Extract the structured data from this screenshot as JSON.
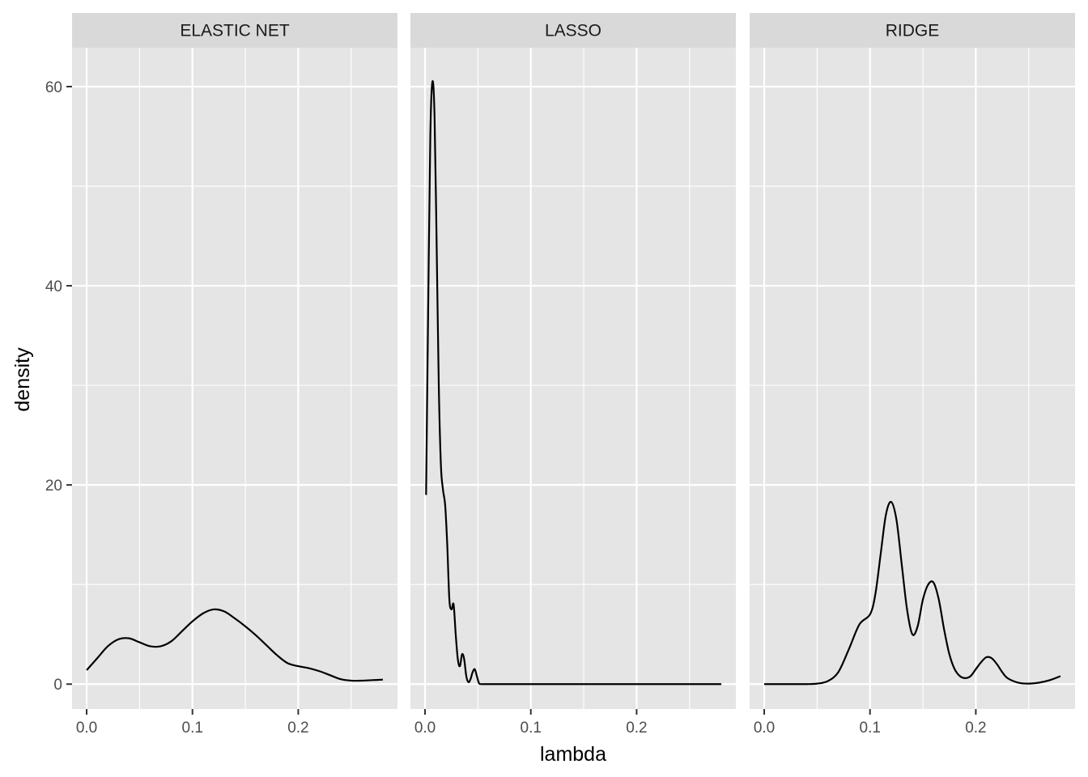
{
  "chart_data": {
    "type": "area",
    "geom": "density",
    "xlabel": "lambda",
    "ylabel": "density",
    "ylim": [
      -2.5,
      63.9
    ],
    "xlim": [
      -0.0138,
      0.2938
    ],
    "x_ticks": [
      0.0,
      0.1,
      0.2
    ],
    "x_tick_labels": [
      "0.0",
      "0.1",
      "0.2"
    ],
    "y_ticks": [
      0,
      20,
      40,
      60
    ],
    "y_tick_labels": [
      "0",
      "20",
      "40",
      "60"
    ],
    "grid": true,
    "background": "#e5e5e5",
    "strip_background": "#d9d9d9",
    "grid_color": "#ffffff",
    "line_color": "#000000",
    "panels": [
      {
        "facet": "ELASTIC NET",
        "x": [
          0.0,
          0.01,
          0.02,
          0.03,
          0.04,
          0.05,
          0.06,
          0.07,
          0.08,
          0.09,
          0.1,
          0.11,
          0.12,
          0.13,
          0.14,
          0.15,
          0.16,
          0.17,
          0.18,
          0.19,
          0.2,
          0.21,
          0.22,
          0.23,
          0.24,
          0.25,
          0.26,
          0.27,
          0.28
        ],
        "y": [
          1.4,
          2.6,
          3.8,
          4.5,
          4.6,
          4.2,
          3.8,
          3.8,
          4.3,
          5.3,
          6.3,
          7.1,
          7.5,
          7.3,
          6.6,
          5.8,
          4.9,
          3.9,
          2.9,
          2.1,
          1.8,
          1.6,
          1.3,
          0.9,
          0.5,
          0.35,
          0.35,
          0.4,
          0.45
        ]
      },
      {
        "facet": "LASSO",
        "x": [
          0.001,
          0.003,
          0.005,
          0.007,
          0.009,
          0.011,
          0.013,
          0.015,
          0.017,
          0.019,
          0.021,
          0.023,
          0.025,
          0.027,
          0.029,
          0.031,
          0.033,
          0.035,
          0.037,
          0.039,
          0.041,
          0.043,
          0.045,
          0.047,
          0.049,
          0.051,
          0.053,
          0.055,
          0.058,
          0.062,
          0.07,
          0.1,
          0.15,
          0.2,
          0.25,
          0.28
        ],
        "y": [
          19.0,
          38.0,
          55.0,
          60.5,
          57.0,
          44.0,
          30.0,
          22.0,
          19.5,
          18.0,
          14.0,
          8.5,
          7.5,
          8.0,
          5.0,
          2.5,
          1.8,
          3.0,
          2.5,
          0.8,
          0.2,
          0.5,
          1.2,
          1.5,
          0.8,
          0.1,
          0.0,
          0.0,
          0.0,
          0.0,
          0.0,
          0.0,
          0.0,
          0.0,
          0.0,
          0.0
        ]
      },
      {
        "facet": "RIDGE",
        "x": [
          0.0,
          0.02,
          0.04,
          0.05,
          0.06,
          0.07,
          0.08,
          0.09,
          0.1,
          0.105,
          0.11,
          0.115,
          0.12,
          0.125,
          0.13,
          0.135,
          0.14,
          0.145,
          0.15,
          0.155,
          0.16,
          0.165,
          0.17,
          0.175,
          0.18,
          0.185,
          0.19,
          0.195,
          0.2,
          0.205,
          0.21,
          0.215,
          0.22,
          0.225,
          0.23,
          0.24,
          0.25,
          0.26,
          0.27,
          0.28
        ],
        "y": [
          0.0,
          0.0,
          0.0,
          0.05,
          0.3,
          1.2,
          3.5,
          6.0,
          7.0,
          9.0,
          13.0,
          17.0,
          18.3,
          16.5,
          12.0,
          7.5,
          5.0,
          5.8,
          8.5,
          10.0,
          10.2,
          8.5,
          5.5,
          3.0,
          1.5,
          0.8,
          0.6,
          0.8,
          1.5,
          2.2,
          2.7,
          2.6,
          2.0,
          1.2,
          0.6,
          0.15,
          0.05,
          0.15,
          0.4,
          0.8
        ]
      }
    ]
  }
}
